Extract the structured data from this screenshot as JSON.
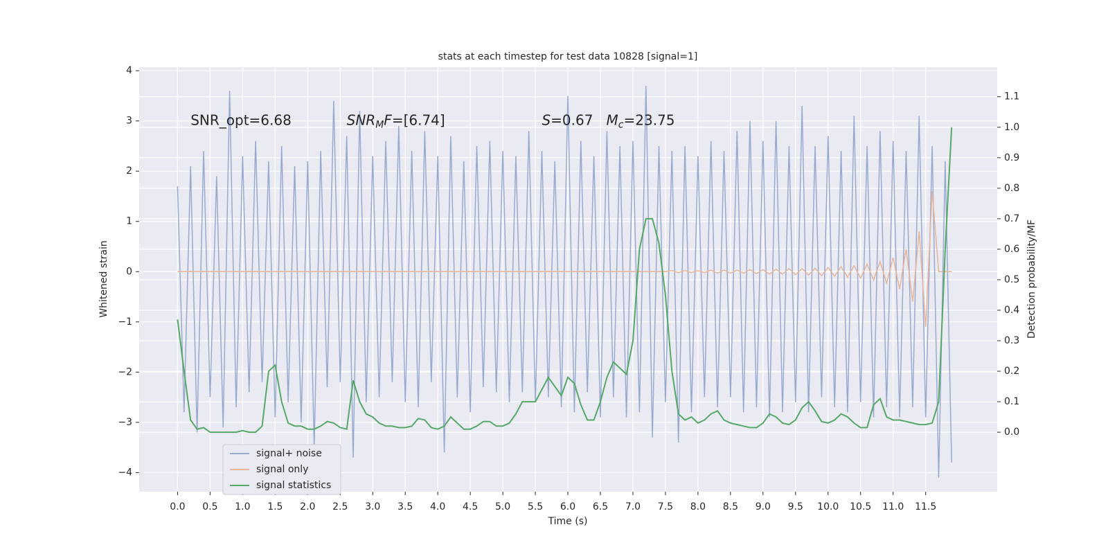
{
  "chart_data": {
    "type": "line",
    "title": "stats at each timestep for test data 10828 [signal=1]",
    "xlabel": "Time (s)",
    "ylabel": "Whitened strain",
    "y2label": "Detection probability/MF",
    "xlim": [
      -0.59,
      12.6
    ],
    "ylim": [
      -4.38,
      4.07
    ],
    "y2lim": [
      -0.195,
      1.197
    ],
    "xticks": [
      {
        "value": 0,
        "label": "0.0"
      },
      {
        "value": 0.5,
        "label": "0.5"
      },
      {
        "value": 1,
        "label": "1.0"
      },
      {
        "value": 1.5,
        "label": "1.5"
      },
      {
        "value": 2,
        "label": "2.0"
      },
      {
        "value": 2.5,
        "label": "2.5"
      },
      {
        "value": 3,
        "label": "3.0"
      },
      {
        "value": 3.5,
        "label": "3.5"
      },
      {
        "value": 4,
        "label": "4.0"
      },
      {
        "value": 4.5,
        "label": "4.5"
      },
      {
        "value": 5,
        "label": "5.0"
      },
      {
        "value": 5.5,
        "label": "5.5"
      },
      {
        "value": 6,
        "label": "6.0"
      },
      {
        "value": 6.5,
        "label": "6.5"
      },
      {
        "value": 7,
        "label": "7.0"
      },
      {
        "value": 7.5,
        "label": "7.5"
      },
      {
        "value": 8,
        "label": "8.0"
      },
      {
        "value": 8.5,
        "label": "8.5"
      },
      {
        "value": 9,
        "label": "9.0"
      },
      {
        "value": 9.5,
        "label": "9.5"
      },
      {
        "value": 10,
        "label": "10.0"
      },
      {
        "value": 10.5,
        "label": "10.5"
      },
      {
        "value": 11,
        "label": "11.0"
      },
      {
        "value": 11.5,
        "label": "11.5"
      }
    ],
    "yticks": [
      {
        "value": -4,
        "label": "−4"
      },
      {
        "value": -3,
        "label": "−3"
      },
      {
        "value": -2,
        "label": "−2"
      },
      {
        "value": -1,
        "label": "−1"
      },
      0,
      1,
      2,
      3,
      4
    ],
    "y2ticks": [
      {
        "value": 0,
        "label": "0.0"
      },
      {
        "value": 0.1,
        "label": "0.1"
      },
      {
        "value": 0.2,
        "label": "0.2"
      },
      {
        "value": 0.3,
        "label": "0.3"
      },
      {
        "value": 0.4,
        "label": "0.4"
      },
      {
        "value": 0.5,
        "label": "0.5"
      },
      {
        "value": 0.6,
        "label": "0.6"
      },
      {
        "value": 0.7,
        "label": "0.7"
      },
      {
        "value": 0.8,
        "label": "0.8"
      },
      {
        "value": 0.9,
        "label": "0.9"
      },
      {
        "value": 1,
        "label": "1.0"
      },
      {
        "value": 1.1,
        "label": "1.1"
      }
    ],
    "grid": true,
    "legend_loc": "lower left",
    "x": [
      0,
      0.1,
      0.2,
      0.3,
      0.4,
      0.5,
      0.6,
      0.7,
      0.8,
      0.9,
      1,
      1.1,
      1.2,
      1.3,
      1.4,
      1.5,
      1.6,
      1.7,
      1.8,
      1.9,
      2,
      2.1,
      2.2,
      2.3,
      2.4,
      2.5,
      2.6,
      2.7,
      2.8,
      2.9,
      3,
      3.1,
      3.2,
      3.3,
      3.4,
      3.5,
      3.6,
      3.7,
      3.8,
      3.9,
      4,
      4.1,
      4.2,
      4.3,
      4.4,
      4.5,
      4.6,
      4.7,
      4.8,
      4.9,
      5,
      5.1,
      5.2,
      5.3,
      5.4,
      5.5,
      5.6,
      5.7,
      5.8,
      5.9,
      6,
      6.1,
      6.2,
      6.3,
      6.4,
      6.5,
      6.6,
      6.7,
      6.8,
      6.9,
      7,
      7.1,
      7.2,
      7.3,
      7.4,
      7.5,
      7.6,
      7.7,
      7.8,
      7.9,
      8,
      8.1,
      8.2,
      8.3,
      8.4,
      8.5,
      8.6,
      8.7,
      8.8,
      8.9,
      9,
      9.1,
      9.2,
      9.3,
      9.4,
      9.5,
      9.6,
      9.7,
      9.8,
      9.9,
      10,
      10.1,
      10.2,
      10.3,
      10.4,
      10.5,
      10.6,
      10.7,
      10.8,
      10.9,
      11,
      11.1,
      11.2,
      11.3,
      11.4,
      11.5,
      11.6,
      11.7,
      11.8,
      11.9
    ],
    "series": [
      {
        "name": "signal+ noise",
        "color": "#99aacf",
        "values": [
          1.7,
          -2.8,
          2.1,
          -3.2,
          2.4,
          -2.5,
          1.9,
          -3.1,
          3.6,
          -2.7,
          2.3,
          -2.4,
          2.6,
          -2.2,
          2.2,
          -2.9,
          2.5,
          -2.6,
          2.1,
          -3.0,
          2.2,
          -3.5,
          2.4,
          -2.3,
          3.4,
          -2.2,
          2.7,
          -3.7,
          3.2,
          -2.6,
          2.3,
          -2.5,
          2.6,
          -2.2,
          2.9,
          -2.6,
          2.4,
          -2.7,
          2.8,
          -2.2,
          2.3,
          -3.6,
          2.7,
          -2.5,
          2.2,
          -2.8,
          2.5,
          -2.3,
          2.6,
          -2.4,
          2.4,
          -2.6,
          2.3,
          -2.4,
          2.8,
          -2.6,
          2.4,
          -2.5,
          2.2,
          -2.7,
          3.5,
          -2.8,
          2.6,
          -2.4,
          2.3,
          -2.9,
          2.8,
          -2.5,
          2.5,
          -2.9,
          2.6,
          -2.8,
          3.7,
          -3.3,
          2.5,
          -2.6,
          2.4,
          -3.4,
          2.5,
          -2.8,
          2.3,
          -2.5,
          2.6,
          -2.7,
          2.4,
          -2.5,
          2.8,
          -2.8,
          3.0,
          -2.7,
          2.6,
          -2.9,
          3.0,
          -2.8,
          2.5,
          -2.6,
          3.3,
          -2.8,
          2.5,
          -2.5,
          2.7,
          -2.7,
          2.4,
          -2.8,
          3.1,
          -2.6,
          2.5,
          -2.9,
          2.8,
          -2.7,
          2.6,
          -2.9,
          2.4,
          -2.7,
          3.1,
          -2.9,
          2.5,
          -4.1,
          2.2,
          -3.8
        ]
      },
      {
        "name": "signal only",
        "color": "#e7b59a",
        "values": [
          0,
          0,
          0,
          0,
          0,
          0,
          0,
          0,
          0,
          0,
          0,
          0,
          0,
          0,
          0,
          0,
          0,
          0,
          0,
          0,
          0,
          0,
          0,
          0,
          0,
          0,
          0,
          0,
          0,
          0,
          0,
          0,
          0,
          0,
          0,
          0,
          0,
          0,
          0,
          0,
          0,
          0,
          0,
          0,
          0,
          0,
          0,
          0,
          0,
          0,
          0,
          0,
          0,
          0,
          0,
          0,
          0,
          0,
          0,
          0,
          0,
          0,
          0,
          0,
          0,
          0,
          0,
          0,
          0,
          0,
          0,
          0,
          0,
          0,
          0,
          0,
          0.02,
          -0.02,
          0.02,
          -0.02,
          0.02,
          -0.02,
          0.03,
          -0.03,
          0.03,
          -0.03,
          0.03,
          -0.03,
          0.04,
          -0.04,
          0.04,
          -0.05,
          0.05,
          -0.05,
          0.06,
          -0.06,
          0.06,
          -0.07,
          0.07,
          -0.08,
          0.08,
          -0.09,
          0.1,
          -0.11,
          0.12,
          -0.13,
          0.15,
          -0.17,
          0.2,
          -0.23,
          0.28,
          -0.35,
          0.45,
          -0.6,
          0.8,
          -1.1,
          1.6,
          0,
          0,
          0
        ]
      },
      {
        "name": "signal statistics",
        "color": "#55a868",
        "axis": "y2",
        "values": [
          0.37,
          0.2,
          0.04,
          0.01,
          0.015,
          0.0,
          0.0,
          0.0,
          0.0,
          0.0,
          0.005,
          0.0,
          0.0,
          0.02,
          0.2,
          0.22,
          0.1,
          0.03,
          0.02,
          0.02,
          0.01,
          0.01,
          0.02,
          0.035,
          0.03,
          0.015,
          0.01,
          0.17,
          0.1,
          0.06,
          0.05,
          0.03,
          0.02,
          0.02,
          0.015,
          0.015,
          0.02,
          0.045,
          0.04,
          0.015,
          0.01,
          0.02,
          0.05,
          0.03,
          0.01,
          0.01,
          0.02,
          0.035,
          0.035,
          0.02,
          0.02,
          0.03,
          0.06,
          0.1,
          0.1,
          0.1,
          0.14,
          0.18,
          0.15,
          0.12,
          0.18,
          0.16,
          0.09,
          0.04,
          0.04,
          0.1,
          0.18,
          0.23,
          0.21,
          0.19,
          0.3,
          0.6,
          0.7,
          0.7,
          0.62,
          0.45,
          0.2,
          0.06,
          0.04,
          0.05,
          0.03,
          0.04,
          0.06,
          0.07,
          0.04,
          0.03,
          0.025,
          0.02,
          0.015,
          0.015,
          0.03,
          0.06,
          0.05,
          0.03,
          0.025,
          0.04,
          0.08,
          0.1,
          0.07,
          0.035,
          0.03,
          0.04,
          0.06,
          0.05,
          0.03,
          0.015,
          0.015,
          0.09,
          0.11,
          0.05,
          0.04,
          0.04,
          0.035,
          0.03,
          0.025,
          0.025,
          0.03,
          0.1,
          0.6,
          1.0
        ]
      }
    ],
    "annotations": [
      {
        "x": 0.2,
        "y": 3,
        "parts": [
          {
            "text": "SNR_opt=6.68"
          }
        ]
      },
      {
        "x": 2.6,
        "y": 3,
        "parts": [
          {
            "text": "SNR",
            "style": "italic"
          },
          {
            "text": "M",
            "style": "sub"
          },
          {
            "text": "F",
            "style": "italic"
          },
          {
            "text": "=[6.74]"
          }
        ]
      },
      {
        "x": 5.6,
        "y": 3,
        "parts": [
          {
            "text": "S",
            "style": "italic"
          },
          {
            "text": "=0.67   "
          },
          {
            "text": "M",
            "style": "italic"
          },
          {
            "text": "c",
            "style": "sub"
          },
          {
            "text": "=23.75"
          }
        ]
      }
    ]
  }
}
